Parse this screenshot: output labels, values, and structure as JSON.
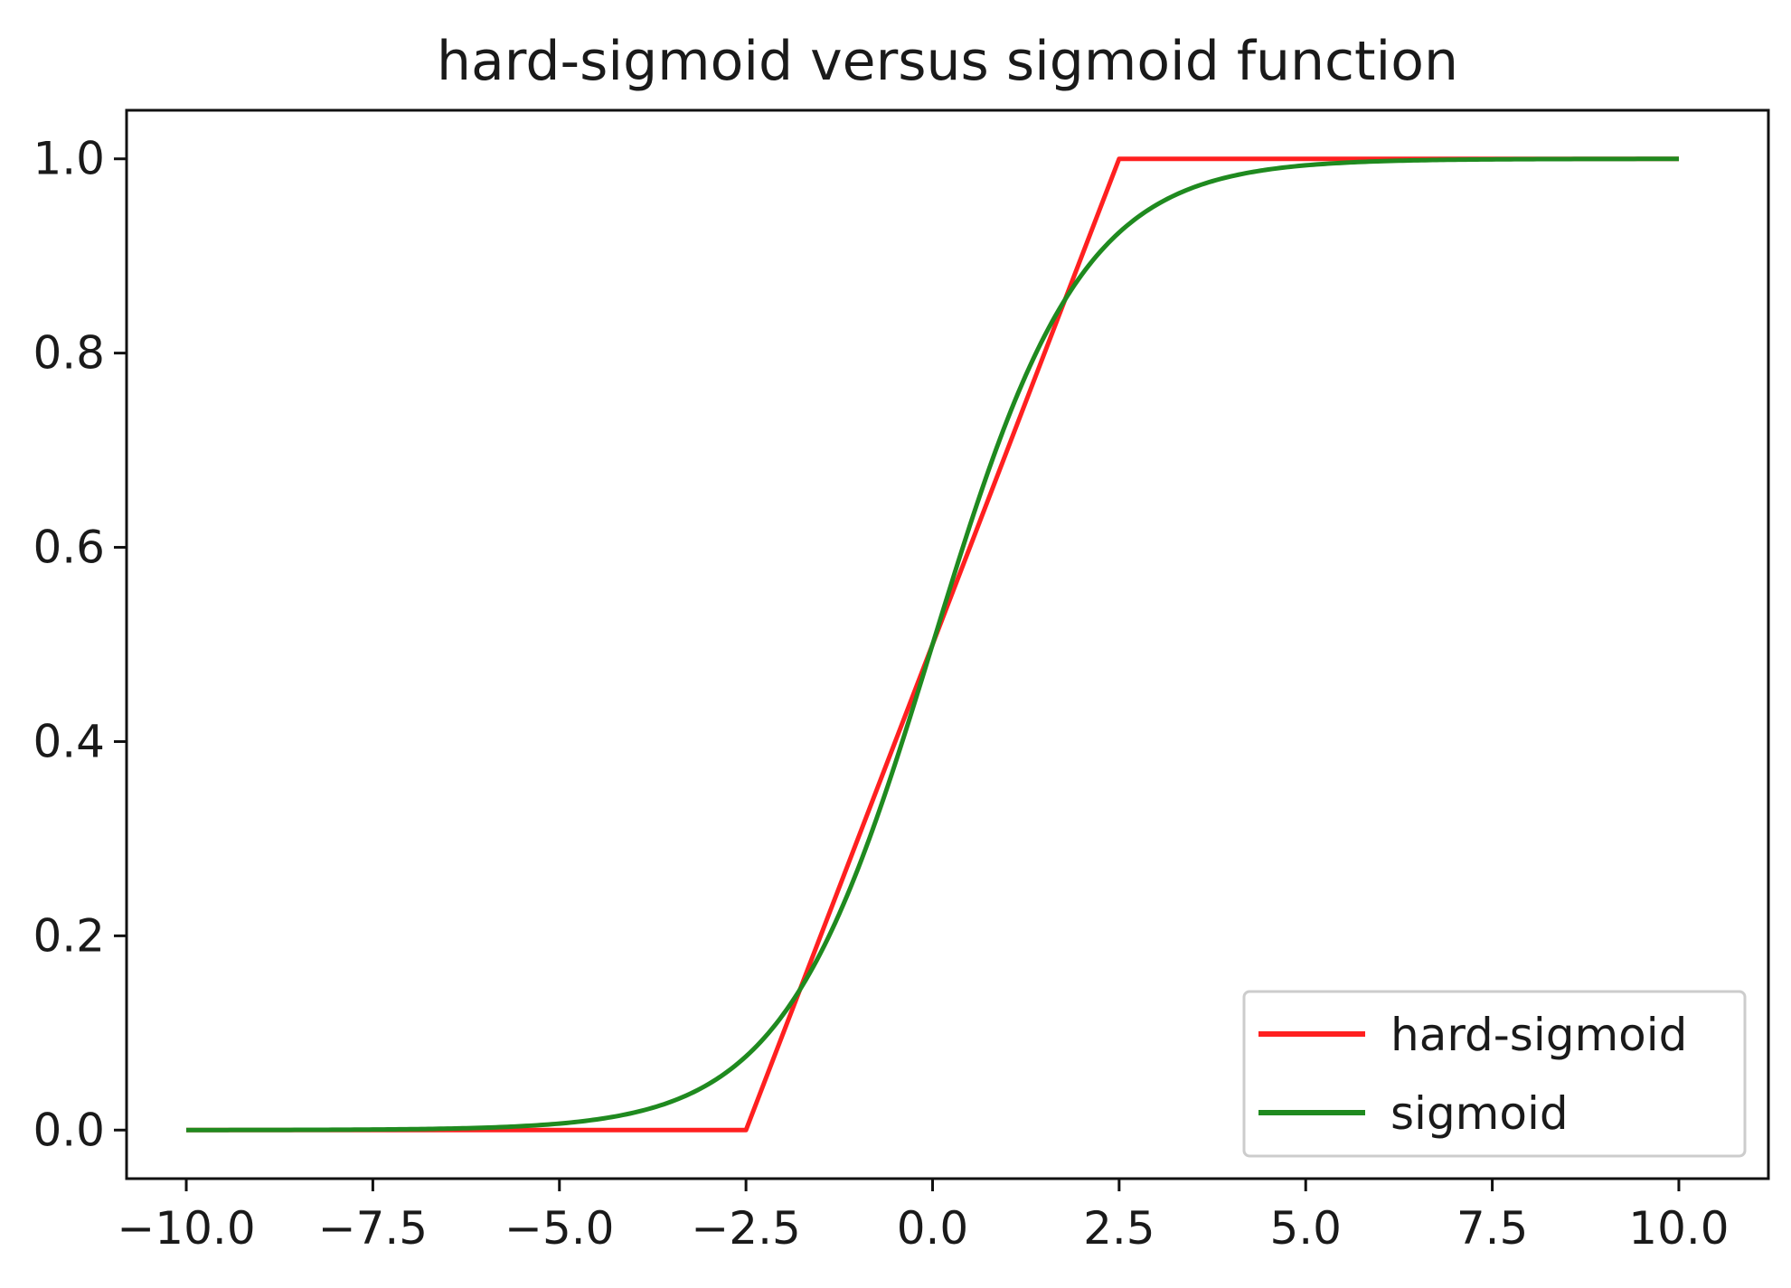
{
  "chart_data": {
    "type": "line",
    "title": "hard-sigmoid versus sigmoid function",
    "xlabel": "",
    "ylabel": "",
    "xlim": [
      -10.8,
      11.2
    ],
    "ylim": [
      -0.05,
      1.05
    ],
    "x_ticks": [
      -10.0,
      -7.5,
      -5.0,
      -2.5,
      0.0,
      2.5,
      5.0,
      7.5,
      10.0
    ],
    "x_tick_labels": [
      "−10.0",
      "−7.5",
      "−5.0",
      "−2.5",
      "0.0",
      "2.5",
      "5.0",
      "7.5",
      "10.0"
    ],
    "y_ticks": [
      0.0,
      0.2,
      0.4,
      0.6,
      0.8,
      1.0
    ],
    "y_tick_labels": [
      "0.0",
      "0.2",
      "0.4",
      "0.6",
      "0.8",
      "1.0"
    ],
    "grid": false,
    "legend_position": "lower-right",
    "series": [
      {
        "name": "hard-sigmoid",
        "color": "#ff2020",
        "x": [
          -10.0,
          -2.5,
          2.5,
          10.0
        ],
        "y": [
          0.0,
          0.0,
          1.0,
          1.0
        ]
      },
      {
        "name": "sigmoid",
        "color": "#1f8a1f",
        "function": "sigmoid",
        "x_range": [
          -10.0,
          10.0
        ]
      }
    ]
  }
}
